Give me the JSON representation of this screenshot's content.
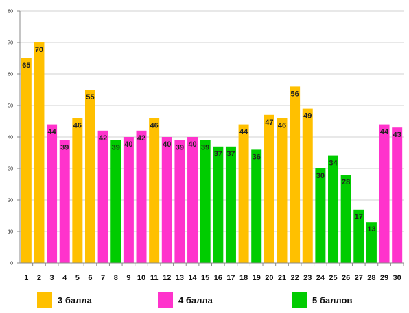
{
  "chart_data": {
    "type": "bar",
    "title": "",
    "xlabel": "",
    "ylabel": "",
    "ylim": [
      0,
      80
    ],
    "y_ticks": [
      0,
      10,
      20,
      30,
      40,
      50,
      60,
      70,
      80
    ],
    "grid": true,
    "legend_position": "bottom",
    "categories": [
      "1",
      "2",
      "3",
      "4",
      "5",
      "6",
      "7",
      "8",
      "9",
      "10",
      "11",
      "12",
      "13",
      "14",
      "15",
      "16",
      "17",
      "18",
      "19",
      "20",
      "21",
      "22",
      "23",
      "24",
      "25",
      "26",
      "27",
      "28",
      "29",
      "30"
    ],
    "values": [
      65,
      70,
      44,
      39,
      46,
      55,
      42,
      39,
      40,
      42,
      46,
      40,
      39,
      40,
      39,
      37,
      37,
      44,
      36,
      47,
      46,
      56,
      49,
      30,
      34,
      28,
      17,
      13,
      44,
      43
    ],
    "groups": [
      "3 балла",
      "3 балла",
      "4 балла",
      "4 балла",
      "3 балла",
      "3 балла",
      "4 балла",
      "5 баллов",
      "4 балла",
      "4 балла",
      "3 балла",
      "4 балла",
      "4 балла",
      "4 балла",
      "5 баллов",
      "5 баллов",
      "5 баллов",
      "3 балла",
      "5 баллов",
      "3 балла",
      "3 балла",
      "3 балла",
      "3 балла",
      "5 баллов",
      "5 баллов",
      "5 баллов",
      "5 баллов",
      "5 баллов",
      "4 балла",
      "4 балла"
    ],
    "legend": [
      {
        "name": "3 балла",
        "color": "#FFC000"
      },
      {
        "name": "4 балла",
        "color": "#FF33CC"
      },
      {
        "name": "5 баллов",
        "color": "#00CC00"
      }
    ]
  }
}
